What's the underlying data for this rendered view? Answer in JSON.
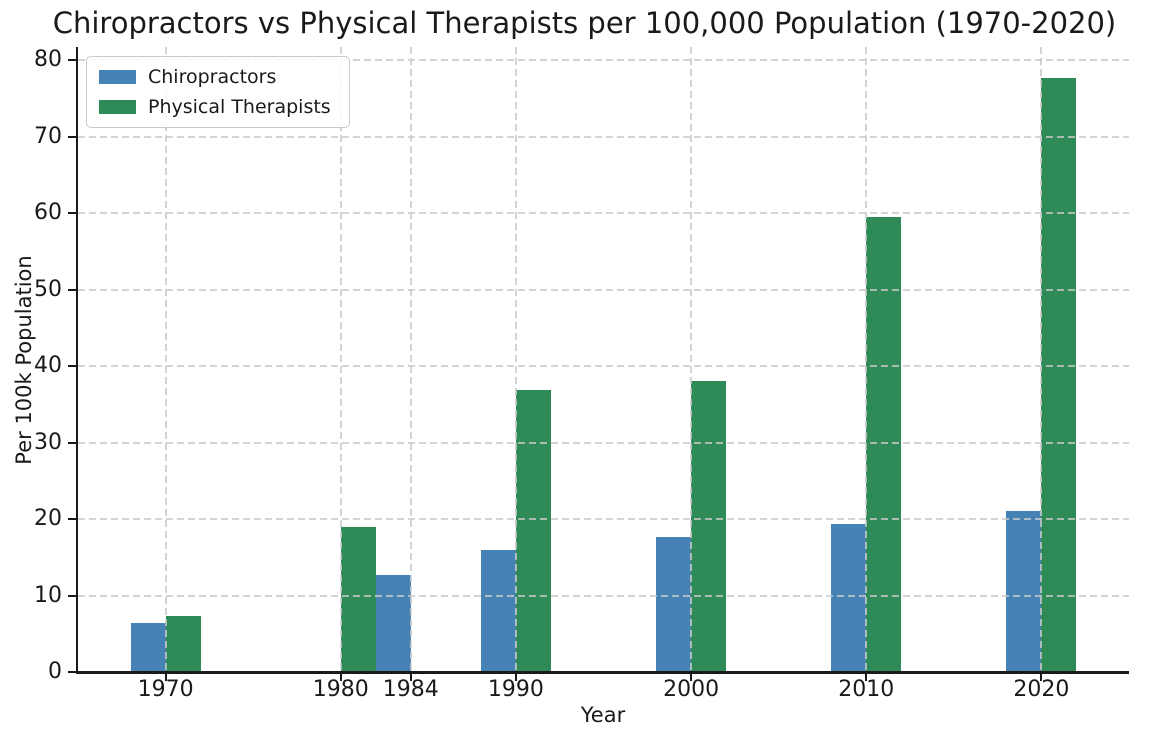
{
  "chart_data": {
    "type": "bar",
    "title": "Chiropractors vs Physical Therapists per 100,000 Population (1970-2020)",
    "xlabel": "Year",
    "ylabel": "Per 100k Population",
    "x_ticks": [
      1970,
      1980,
      1984,
      1990,
      2000,
      2010,
      2020
    ],
    "y_ticks": [
      0,
      10,
      20,
      30,
      40,
      50,
      60,
      70,
      80
    ],
    "xlim": [
      1965,
      2025
    ],
    "ylim": [
      0,
      81.7
    ],
    "bar_width_years": 2,
    "grid": {
      "style": "dashed",
      "color": "#c9c9c9",
      "horizontal": true,
      "vertical": true
    },
    "legend": {
      "position": "upper-left"
    },
    "axis_color": "#1a1a1a",
    "series": [
      {
        "name": "Chiropractors",
        "color": "#4682b4",
        "offset_years": [
          -2,
          0
        ],
        "points": [
          {
            "year": 1970,
            "value": 6.4
          },
          {
            "year": 1984,
            "value": 12.7
          },
          {
            "year": 1990,
            "value": 16.0
          },
          {
            "year": 2000,
            "value": 17.7
          },
          {
            "year": 2010,
            "value": 19.4
          },
          {
            "year": 2020,
            "value": 21.1
          }
        ]
      },
      {
        "name": "Physical Therapists",
        "color": "#2e8b57",
        "offset_years": [
          0,
          2
        ],
        "points": [
          {
            "year": 1970,
            "value": 7.3
          },
          {
            "year": 1980,
            "value": 18.9
          },
          {
            "year": 1990,
            "value": 36.9
          },
          {
            "year": 2000,
            "value": 38.0
          },
          {
            "year": 2010,
            "value": 59.5
          },
          {
            "year": 2020,
            "value": 77.6
          }
        ]
      }
    ]
  }
}
